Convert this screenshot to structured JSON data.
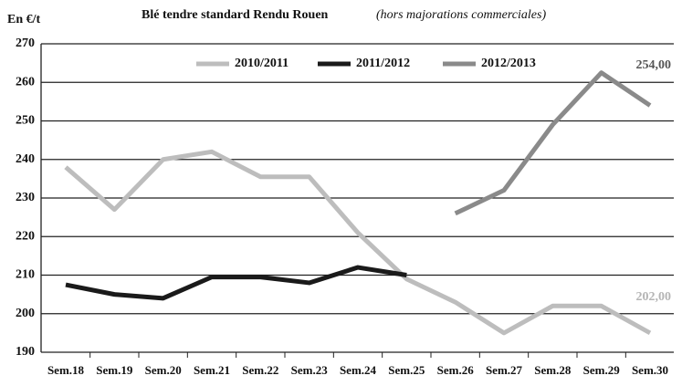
{
  "chart_data": {
    "type": "line",
    "title": "Blé tendre standard Rendu Rouen",
    "subtitle": "(hors majorations commerciales)",
    "y_label": "En €/t",
    "categories": [
      "Sem.18",
      "Sem.19",
      "Sem.20",
      "Sem.21",
      "Sem.22",
      "Sem.23",
      "Sem.24",
      "Sem.25",
      "Sem.26",
      "Sem.27",
      "Sem.28",
      "Sem.29",
      "Sem.30"
    ],
    "series": [
      {
        "name": "2010/2011",
        "color": "#bdbdbd",
        "values": [
          238,
          227,
          240,
          242,
          235.5,
          235.5,
          221,
          209,
          203,
          195,
          202,
          202,
          195
        ]
      },
      {
        "name": "2011/2012",
        "color": "#1a1a1a",
        "values": [
          207.5,
          205,
          204,
          209.5,
          209.5,
          208,
          212,
          210,
          null,
          null,
          null,
          null,
          null
        ]
      },
      {
        "name": "2012/2013",
        "color": "#8a8a8a",
        "values": [
          null,
          null,
          null,
          null,
          null,
          null,
          null,
          null,
          226,
          232,
          249,
          262.5,
          254
        ]
      }
    ],
    "annotations": [
      "254,00",
      "202,00"
    ],
    "ylim": [
      190,
      270
    ],
    "yticks": [
      190,
      200,
      210,
      220,
      230,
      240,
      250,
      260,
      270
    ],
    "grid": true
  }
}
